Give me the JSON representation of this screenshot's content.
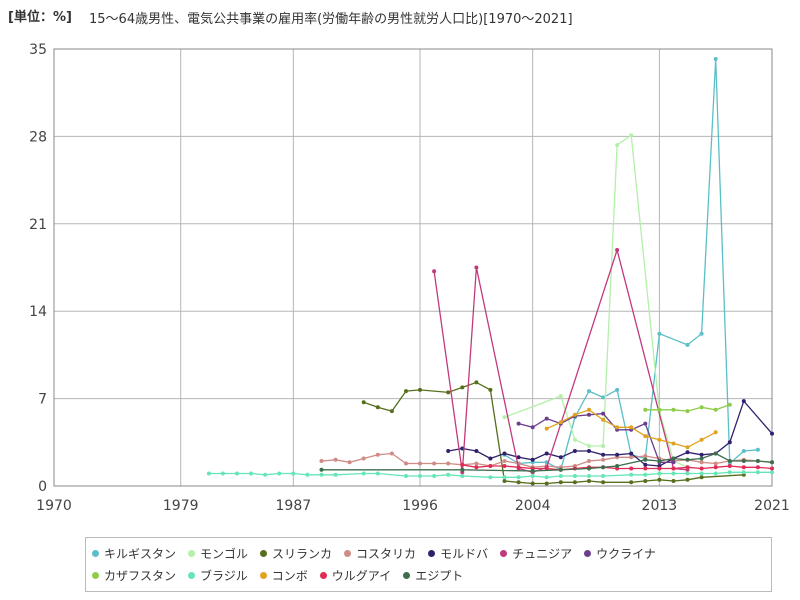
{
  "chart_data": {
    "type": "line",
    "unit_label": "[単位：%]",
    "title": "15～64歳男性、電気公共事業の雇用率(労働年齢の男性就労人口比)[1970～2021]",
    "xlim": [
      1970,
      2021
    ],
    "ylim": [
      0,
      35
    ],
    "x_ticks": [
      1970,
      1979,
      1987,
      1996,
      2004,
      2013,
      2021
    ],
    "y_ticks": [
      0,
      7,
      14,
      21,
      28,
      35
    ],
    "grid": true,
    "legend_position": "bottom",
    "series": [
      {
        "name": "キルギスタン",
        "color": "#5bbfc7",
        "points": [
          [
            2002,
            2.5
          ],
          [
            2003,
            1.8
          ],
          [
            2004,
            1.9
          ],
          [
            2005,
            1.9
          ],
          [
            2006,
            1.3
          ],
          [
            2007,
            5.5
          ],
          [
            2008,
            7.6
          ],
          [
            2009,
            7.1
          ],
          [
            2010,
            7.7
          ],
          [
            2011,
            2.5
          ],
          [
            2012,
            2.2
          ],
          [
            2013,
            12.2
          ],
          [
            2015,
            11.3
          ],
          [
            2016,
            12.2
          ],
          [
            2017,
            34.2
          ],
          [
            2018,
            1.8
          ],
          [
            2019,
            2.8
          ],
          [
            2020,
            2.9
          ]
        ]
      },
      {
        "name": "モンゴル",
        "color": "#b3f0a9",
        "points": [
          [
            2002,
            5.5
          ],
          [
            2006,
            7.2
          ],
          [
            2007,
            3.7
          ],
          [
            2008,
            3.2
          ],
          [
            2009,
            3.2
          ],
          [
            2010,
            27.3
          ],
          [
            2011,
            28.1
          ],
          [
            2013,
            6.0
          ],
          [
            2014,
            2.0
          ],
          [
            2015,
            1.5
          ]
        ]
      },
      {
        "name": "スリランカ",
        "color": "#566f1c",
        "points": [
          [
            1992,
            6.7
          ],
          [
            1993,
            6.3
          ],
          [
            1994,
            6.0
          ],
          [
            1995,
            7.6
          ],
          [
            1996,
            7.7
          ],
          [
            1998,
            7.5
          ],
          [
            1999,
            7.9
          ],
          [
            2000,
            8.3
          ],
          [
            2001,
            7.7
          ],
          [
            2002,
            0.4
          ],
          [
            2003,
            0.3
          ],
          [
            2004,
            0.2
          ],
          [
            2005,
            0.2
          ],
          [
            2006,
            0.3
          ],
          [
            2007,
            0.3
          ],
          [
            2008,
            0.4
          ],
          [
            2009,
            0.3
          ],
          [
            2011,
            0.3
          ],
          [
            2012,
            0.4
          ],
          [
            2013,
            0.5
          ],
          [
            2014,
            0.4
          ],
          [
            2015,
            0.5
          ],
          [
            2016,
            0.7
          ],
          [
            2019,
            0.9
          ]
        ]
      },
      {
        "name": "コスタリカ",
        "color": "#cf8b86",
        "points": [
          [
            1989,
            2.0
          ],
          [
            1990,
            2.1
          ],
          [
            1991,
            1.9
          ],
          [
            1992,
            2.2
          ],
          [
            1993,
            2.5
          ],
          [
            1994,
            2.6
          ],
          [
            1995,
            1.8
          ],
          [
            1996,
            1.8
          ],
          [
            1997,
            1.8
          ],
          [
            1998,
            1.8
          ],
          [
            1999,
            1.7
          ],
          [
            2000,
            1.8
          ],
          [
            2001,
            1.6
          ],
          [
            2002,
            2.0
          ],
          [
            2003,
            1.8
          ],
          [
            2004,
            1.5
          ],
          [
            2005,
            1.6
          ],
          [
            2006,
            1.5
          ],
          [
            2007,
            1.6
          ],
          [
            2008,
            2.0
          ],
          [
            2009,
            2.1
          ],
          [
            2010,
            2.3
          ],
          [
            2011,
            2.3
          ],
          [
            2012,
            2.4
          ],
          [
            2013,
            2.2
          ],
          [
            2014,
            2.0
          ],
          [
            2015,
            2.1
          ],
          [
            2016,
            1.9
          ],
          [
            2017,
            1.8
          ],
          [
            2018,
            2.0
          ],
          [
            2019,
            2.1
          ],
          [
            2020,
            2.0
          ],
          [
            2021,
            1.9
          ]
        ]
      },
      {
        "name": "モルドバ",
        "color": "#31206e",
        "points": [
          [
            1998,
            2.8
          ],
          [
            1999,
            3.0
          ],
          [
            2000,
            2.8
          ],
          [
            2001,
            2.2
          ],
          [
            2002,
            2.6
          ],
          [
            2003,
            2.3
          ],
          [
            2004,
            2.1
          ],
          [
            2005,
            2.6
          ],
          [
            2006,
            2.3
          ],
          [
            2007,
            2.8
          ],
          [
            2008,
            2.8
          ],
          [
            2009,
            2.5
          ],
          [
            2010,
            2.5
          ],
          [
            2011,
            2.6
          ],
          [
            2012,
            1.7
          ],
          [
            2013,
            1.6
          ],
          [
            2014,
            2.2
          ],
          [
            2015,
            2.7
          ],
          [
            2016,
            2.5
          ],
          [
            2017,
            2.6
          ],
          [
            2018,
            3.5
          ],
          [
            2019,
            6.8
          ],
          [
            2021,
            4.2
          ]
        ]
      },
      {
        "name": "チュニジア",
        "color": "#c2397c",
        "points": [
          [
            1997,
            17.2
          ],
          [
            1999,
            1.1
          ],
          [
            2000,
            17.5
          ],
          [
            2003,
            1.4
          ],
          [
            2004,
            1.1
          ],
          [
            2005,
            1.5
          ],
          [
            2010,
            18.9
          ],
          [
            2014,
            1.4
          ],
          [
            2015,
            1.3
          ]
        ]
      },
      {
        "name": "ウクライナ",
        "color": "#6c3f8d",
        "points": [
          [
            2003,
            5.0
          ],
          [
            2004,
            4.7
          ],
          [
            2005,
            5.4
          ],
          [
            2006,
            5.0
          ],
          [
            2007,
            5.6
          ],
          [
            2008,
            5.7
          ],
          [
            2009,
            5.8
          ],
          [
            2010,
            4.5
          ],
          [
            2011,
            4.5
          ],
          [
            2012,
            5.0
          ],
          [
            2013,
            1.9
          ],
          [
            2014,
            1.9
          ]
        ]
      },
      {
        "name": "カザフスタン",
        "color": "#8ecb4a",
        "points": [
          [
            2012,
            6.1
          ],
          [
            2013,
            6.1
          ],
          [
            2014,
            6.1
          ],
          [
            2015,
            6.0
          ],
          [
            2016,
            6.3
          ],
          [
            2017,
            6.1
          ],
          [
            2018,
            6.5
          ]
        ]
      },
      {
        "name": "ブラジル",
        "color": "#66e6b6",
        "points": [
          [
            1981,
            1.0
          ],
          [
            1982,
            1.0
          ],
          [
            1983,
            1.0
          ],
          [
            1984,
            1.0
          ],
          [
            1985,
            0.9
          ],
          [
            1986,
            1.0
          ],
          [
            1987,
            1.0
          ],
          [
            1988,
            0.9
          ],
          [
            1989,
            0.9
          ],
          [
            1990,
            0.9
          ],
          [
            1992,
            1.0
          ],
          [
            1993,
            1.0
          ],
          [
            1995,
            0.8
          ],
          [
            1996,
            0.8
          ],
          [
            1997,
            0.8
          ],
          [
            1998,
            0.9
          ],
          [
            1999,
            0.8
          ],
          [
            2001,
            0.7
          ],
          [
            2002,
            0.7
          ],
          [
            2003,
            0.7
          ],
          [
            2004,
            0.8
          ],
          [
            2005,
            0.7
          ],
          [
            2006,
            0.8
          ],
          [
            2007,
            0.8
          ],
          [
            2008,
            0.8
          ],
          [
            2009,
            0.8
          ],
          [
            2011,
            0.9
          ],
          [
            2012,
            0.9
          ],
          [
            2013,
            1.0
          ],
          [
            2014,
            1.0
          ],
          [
            2015,
            1.0
          ],
          [
            2016,
            1.0
          ],
          [
            2017,
            1.0
          ],
          [
            2018,
            1.1
          ],
          [
            2019,
            1.1
          ],
          [
            2020,
            1.1
          ],
          [
            2021,
            1.1
          ]
        ]
      },
      {
        "name": "コンボ",
        "color": "#e0a31f",
        "points": [
          [
            2005,
            4.6
          ],
          [
            2006,
            5.1
          ],
          [
            2007,
            5.7
          ],
          [
            2008,
            6.1
          ],
          [
            2009,
            5.3
          ],
          [
            2010,
            4.7
          ],
          [
            2011,
            4.7
          ],
          [
            2012,
            4.0
          ],
          [
            2013,
            3.7
          ],
          [
            2014,
            3.4
          ],
          [
            2015,
            3.1
          ],
          [
            2016,
            3.7
          ],
          [
            2017,
            4.3
          ]
        ]
      },
      {
        "name": "ウルグアイ",
        "color": "#e02c55",
        "points": [
          [
            1999,
            1.7
          ],
          [
            2000,
            1.5
          ],
          [
            2001,
            1.6
          ],
          [
            2002,
            1.6
          ],
          [
            2003,
            1.5
          ],
          [
            2004,
            1.4
          ],
          [
            2005,
            1.4
          ],
          [
            2006,
            1.3
          ],
          [
            2007,
            1.4
          ],
          [
            2008,
            1.5
          ],
          [
            2009,
            1.5
          ],
          [
            2010,
            1.4
          ],
          [
            2011,
            1.4
          ],
          [
            2012,
            1.4
          ],
          [
            2013,
            1.4
          ],
          [
            2014,
            1.4
          ],
          [
            2015,
            1.5
          ],
          [
            2016,
            1.4
          ],
          [
            2017,
            1.5
          ],
          [
            2018,
            1.6
          ],
          [
            2019,
            1.5
          ],
          [
            2020,
            1.5
          ],
          [
            2021,
            1.4
          ]
        ]
      },
      {
        "name": "エジプト",
        "color": "#3d6f4d",
        "points": [
          [
            1989,
            1.3
          ],
          [
            1999,
            1.3
          ],
          [
            2004,
            1.2
          ],
          [
            2006,
            1.3
          ],
          [
            2008,
            1.4
          ],
          [
            2009,
            1.5
          ],
          [
            2010,
            1.6
          ],
          [
            2012,
            2.1
          ],
          [
            2013,
            2.0
          ],
          [
            2014,
            2.2
          ],
          [
            2015,
            2.1
          ],
          [
            2016,
            2.2
          ],
          [
            2017,
            2.6
          ],
          [
            2018,
            2.0
          ],
          [
            2019,
            2.0
          ],
          [
            2020,
            2.0
          ],
          [
            2021,
            1.9
          ]
        ]
      }
    ]
  },
  "legend_rows": [
    [
      "キルギスタン",
      "モンゴル",
      "スリランカ",
      "コスタリカ",
      "モルドバ",
      "チュニジア",
      "ウクライナ"
    ],
    [
      "カザフスタン",
      "ブラジル",
      "コンボ",
      "ウルグアイ",
      "エジプト"
    ]
  ]
}
